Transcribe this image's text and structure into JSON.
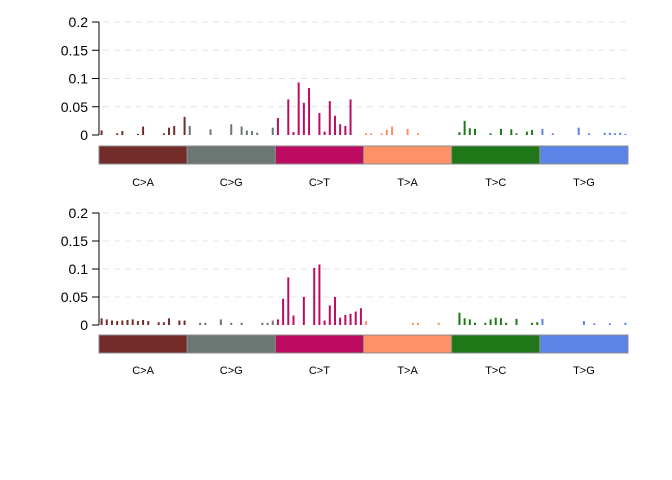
{
  "chart_data": [
    {
      "type": "bar",
      "title": "",
      "xlabel": "",
      "ylabel": "",
      "ylim": [
        0,
        0.2
      ],
      "y_ticks": [
        {
          "value": 0,
          "label": "0"
        },
        {
          "value": 0.05,
          "label": "0.05"
        },
        {
          "value": 0.1,
          "label": "0.1"
        },
        {
          "value": 0.15,
          "label": "0.15"
        },
        {
          "value": 0.2,
          "label": "0.2"
        }
      ],
      "grid": "horizontal dashed",
      "groups": [
        {
          "label": "C>A",
          "color": "#722D2A",
          "values": [
            0.008,
            0,
            0,
            0.003,
            0.007,
            0,
            0,
            0.002,
            0.015,
            0,
            0,
            0,
            0.003,
            0.013,
            0.016,
            0,
            0.032
          ]
        },
        {
          "label": "C>G",
          "color": "#6C7774",
          "values": [
            0.016,
            0,
            0,
            0,
            0.01,
            0,
            0,
            0,
            0.019,
            0,
            0.015,
            0.008,
            0.007,
            0.004,
            0,
            0,
            0.013
          ]
        },
        {
          "label": "C>T",
          "color": "#BD0B61",
          "values": [
            0.03,
            0,
            0.063,
            0.005,
            0.093,
            0.057,
            0.083,
            0,
            0.039,
            0.006,
            0.06,
            0.034,
            0.019,
            0.016,
            0.063,
            0,
            0
          ]
        },
        {
          "label": "T>A",
          "color": "#FF9166",
          "values": [
            0.003,
            0.003,
            0,
            0.003,
            0.009,
            0.015,
            0,
            0,
            0.011,
            0,
            0.003,
            0,
            0,
            0,
            0,
            0,
            0
          ]
        },
        {
          "label": "T>C",
          "color": "#1E7818",
          "values": [
            0,
            0.005,
            0.025,
            0.012,
            0.011,
            0,
            0,
            0.003,
            0,
            0.011,
            0,
            0.01,
            0.003,
            0,
            0.006,
            0.009,
            0
          ]
        },
        {
          "label": "T>G",
          "color": "#5A84E8",
          "values": [
            0.011,
            0,
            0.003,
            0,
            0,
            0,
            0,
            0.013,
            0,
            0.003,
            0,
            0,
            0.004,
            0.004,
            0.003,
            0.004,
            0.002
          ]
        }
      ]
    },
    {
      "type": "bar",
      "title": "",
      "xlabel": "",
      "ylabel": "",
      "ylim": [
        0,
        0.2
      ],
      "y_ticks": [
        {
          "value": 0,
          "label": "0"
        },
        {
          "value": 0.05,
          "label": "0.05"
        },
        {
          "value": 0.1,
          "label": "0.1"
        },
        {
          "value": 0.15,
          "label": "0.15"
        },
        {
          "value": 0.2,
          "label": "0.2"
        }
      ],
      "grid": "horizontal dashed",
      "groups": [
        {
          "label": "C>A",
          "color": "#722D2A",
          "values": [
            0.012,
            0.01,
            0.008,
            0.007,
            0.008,
            0.009,
            0.01,
            0.007,
            0.009,
            0.007,
            0,
            0.005,
            0.005,
            0.012,
            0,
            0.008,
            0.008
          ]
        },
        {
          "label": "C>G",
          "color": "#6C7774",
          "values": [
            0,
            0,
            0.004,
            0.004,
            0,
            0,
            0.01,
            0,
            0.004,
            0,
            0.004,
            0,
            0,
            0,
            0.004,
            0.004,
            0.008
          ]
        },
        {
          "label": "C>T",
          "color": "#BD0B61",
          "values": [
            0.01,
            0.047,
            0.085,
            0.017,
            0,
            0.05,
            0,
            0.102,
            0.108,
            0.008,
            0.035,
            0.05,
            0.013,
            0.018,
            0.02,
            0.024,
            0.03
          ]
        },
        {
          "label": "T>A",
          "color": "#FF9166",
          "values": [
            0.007,
            0,
            0,
            0,
            0,
            0,
            0,
            0,
            0,
            0.004,
            0.004,
            0,
            0,
            0,
            0.004,
            0,
            0
          ]
        },
        {
          "label": "T>C",
          "color": "#1E7818",
          "values": [
            0,
            0.022,
            0.012,
            0.01,
            0.004,
            0,
            0.004,
            0.01,
            0.013,
            0.012,
            0.004,
            0,
            0.011,
            0,
            0,
            0.004,
            0.005
          ]
        },
        {
          "label": "T>G",
          "color": "#5A84E8",
          "values": [
            0.011,
            0,
            0,
            0,
            0,
            0,
            0,
            0,
            0.007,
            0,
            0.003,
            0,
            0,
            0.003,
            0,
            0,
            0.004
          ]
        }
      ]
    }
  ]
}
